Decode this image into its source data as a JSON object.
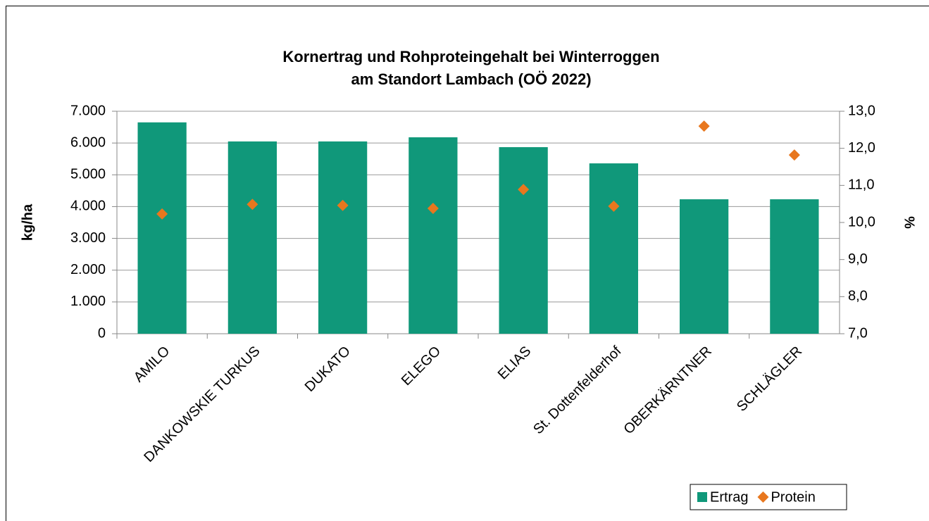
{
  "chart_data": {
    "type": "bar",
    "title": "Kornertrag und Rohproteingehalt bei Winterroggen",
    "subtitle": "am Standort Lambach (OÖ 2022)",
    "ylabel": "kg/ha",
    "y2label": "%",
    "categories": [
      "AMILO",
      "DANKOWSKIE TURKUS",
      "DUKATO",
      "ELEGO",
      "ELIAS",
      "St. Dottenfelderhof",
      "OBERKÄRNTNER",
      "SCHLÄGLER"
    ],
    "series": [
      {
        "name": "Ertrag",
        "type": "bar",
        "color": "#10987a",
        "values": [
          6650,
          6050,
          6050,
          6180,
          5870,
          5360,
          4230,
          4230
        ]
      },
      {
        "name": "Protein",
        "type": "scatter",
        "axis": "y2",
        "color": "#e8771e",
        "values": [
          10.23,
          10.49,
          10.46,
          10.38,
          10.89,
          10.44,
          12.6,
          11.82
        ]
      }
    ],
    "ylim": [
      0,
      7000
    ],
    "yticks": [
      0,
      {
        "value": 1000,
        "label": "1.000"
      },
      {
        "value": 2000,
        "label": "2.000"
      },
      {
        "value": 3000,
        "label": "3.000"
      },
      {
        "value": 4000,
        "label": "4.000"
      },
      {
        "value": 5000,
        "label": "5.000"
      },
      {
        "value": 6000,
        "label": "6.000"
      },
      {
        "value": 7000,
        "label": "7.000"
      }
    ],
    "y2lim": [
      7,
      13
    ],
    "y2ticks": [
      {
        "value": 7,
        "label": "7,0"
      },
      {
        "value": 8,
        "label": "8,0"
      },
      {
        "value": 9,
        "label": "9,0"
      },
      {
        "value": 10,
        "label": "10,0"
      },
      {
        "value": 11,
        "label": "11,0"
      },
      {
        "value": 12,
        "label": "12,0"
      },
      {
        "value": 13,
        "label": "13,0"
      }
    ],
    "grid": true,
    "legend": "bottom-right"
  }
}
